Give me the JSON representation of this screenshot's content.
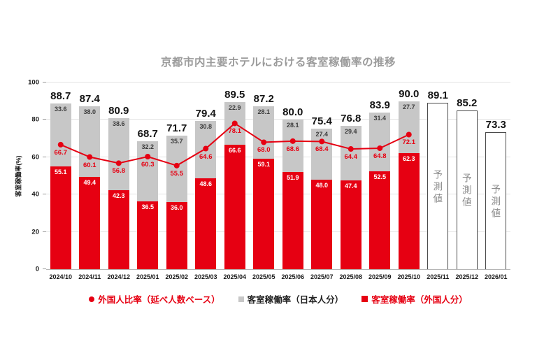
{
  "chart_data": {
    "type": "bar",
    "subtype": "stacked-bar-with-line",
    "title": "京都市内主要ホテルにおける客室稼働率の推移",
    "ylabel": "客室稼働率(%)",
    "ylim": [
      0,
      100
    ],
    "yticks": [
      0,
      20,
      40,
      60,
      80,
      100
    ],
    "grid": true,
    "legend_position": "bottom",
    "categories": [
      "2024/10",
      "2024/11",
      "2024/12",
      "2025/01",
      "2025/02",
      "2025/03",
      "2025/04",
      "2025/05",
      "2025/06",
      "2025/07",
      "2025/08",
      "2025/09",
      "2025/10",
      "2025/11",
      "2025/12",
      "2026/01"
    ],
    "totals": [
      88.7,
      87.4,
      80.9,
      68.7,
      71.7,
      79.4,
      89.5,
      87.2,
      80.0,
      75.4,
      76.8,
      83.9,
      90.0,
      89.1,
      85.2,
      73.3
    ],
    "forecast": [
      false,
      false,
      false,
      false,
      false,
      false,
      false,
      false,
      false,
      false,
      false,
      false,
      false,
      true,
      true,
      true
    ],
    "forecast_label": "予測値",
    "series": [
      {
        "name": "客室稼働率（外国人分）",
        "type": "bar-stack-bottom",
        "color": "#e60012",
        "values": [
          55.1,
          49.4,
          42.3,
          36.5,
          36.0,
          48.6,
          66.6,
          59.1,
          51.9,
          48.0,
          47.4,
          52.5,
          62.3,
          null,
          null,
          null
        ]
      },
      {
        "name": "客室稼働率（日本人分）",
        "type": "bar-stack-top",
        "color": "#c7c7c7",
        "values": [
          33.6,
          38.0,
          38.6,
          32.2,
          35.7,
          30.8,
          22.9,
          28.1,
          28.1,
          27.4,
          29.4,
          31.4,
          27.7,
          null,
          null,
          null
        ]
      },
      {
        "name": "外国人比率（延べ人数ベース）",
        "type": "line",
        "color": "#e60012",
        "values": [
          66.7,
          60.1,
          56.8,
          60.3,
          55.5,
          64.6,
          78.1,
          68.0,
          68.6,
          68.4,
          64.4,
          64.8,
          72.1,
          null,
          null,
          null
        ]
      }
    ],
    "legend": [
      {
        "label": "外国人比率（延べ人数ベース）",
        "marker": "circle",
        "color": "#e60012"
      },
      {
        "label": "客室稼働率（日本人分）",
        "marker": "square",
        "color": "#c7c7c7"
      },
      {
        "label": "客室稼働率（外国人分）",
        "marker": "square",
        "color": "#e60012"
      }
    ],
    "colors": {
      "foreign_bar": "#e60012",
      "japanese_bar": "#c7c7c7",
      "line": "#e60012",
      "title_text": "#9b9b9b",
      "forecast_text": "#8c8c8c",
      "total_label": "#141414"
    }
  }
}
